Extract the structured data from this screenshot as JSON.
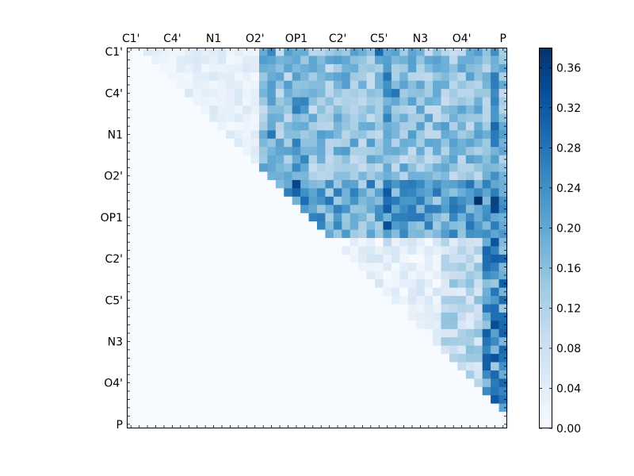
{
  "chart_data": {
    "type": "heatmap",
    "title": "",
    "xlabel": "",
    "ylabel": "",
    "x_tick_labels": [
      "C1'",
      "C4'",
      "N1",
      "O2'",
      "OP1",
      "C2'",
      "C5'",
      "N3",
      "O4'",
      "P"
    ],
    "y_tick_labels": [
      "C1'",
      "C4'",
      "N1",
      "O2'",
      "OP1",
      "C2'",
      "C5'",
      "N3",
      "O4'",
      "P"
    ],
    "n_cells": 46,
    "tick_label_every": 5,
    "colormap": "Blues",
    "colorbar": {
      "min": 0.0,
      "max": 0.38,
      "ticks": [
        "0.00",
        "0.04",
        "0.08",
        "0.12",
        "0.16",
        "0.20",
        "0.24",
        "0.28",
        "0.32",
        "0.36"
      ],
      "tick_values": [
        0.0,
        0.04,
        0.08,
        0.12,
        0.16,
        0.2,
        0.24,
        0.28,
        0.32,
        0.36
      ]
    },
    "upper_triangle_only": true,
    "notable_values": [
      {
        "row": 0,
        "col": 2,
        "value": 0.05
      },
      {
        "row": 0,
        "col": 30,
        "value": 0.3
      },
      {
        "row": 1,
        "col": 18,
        "value": 0.18
      },
      {
        "row": 5,
        "col": 32,
        "value": 0.28
      },
      {
        "row": 14,
        "col": 17,
        "value": 0.2
      },
      {
        "row": 16,
        "col": 20,
        "value": 0.35
      },
      {
        "row": 17,
        "col": 31,
        "value": 0.32
      },
      {
        "row": 18,
        "col": 42,
        "value": 0.38
      },
      {
        "row": 24,
        "col": 43,
        "value": 0.3
      },
      {
        "row": 25,
        "col": 43,
        "value": 0.29
      },
      {
        "row": 32,
        "col": 44,
        "value": 0.29
      },
      {
        "row": 32,
        "col": 45,
        "value": 0.29
      },
      {
        "row": 33,
        "col": 44,
        "value": 0.34
      },
      {
        "row": 37,
        "col": 44,
        "value": 0.33
      },
      {
        "row": 41,
        "col": 43,
        "value": 0.25
      },
      {
        "row": 42,
        "col": 44,
        "value": 0.32
      }
    ]
  }
}
